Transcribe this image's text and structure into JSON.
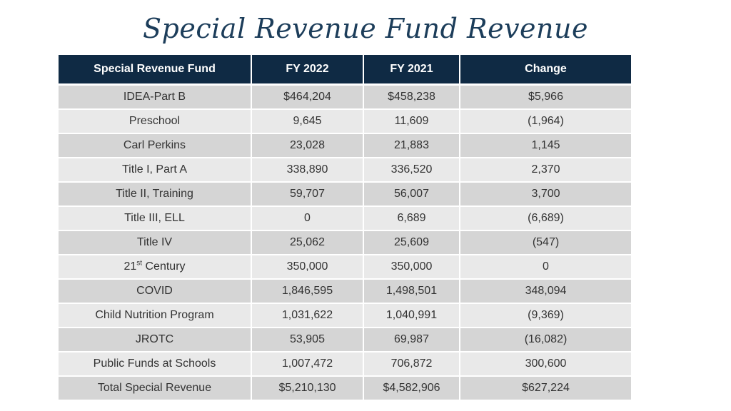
{
  "title": "Special Revenue Fund Revenue",
  "table": {
    "headers": [
      "Special Revenue Fund",
      "FY 2022",
      "FY 2021",
      "Change"
    ],
    "rows": [
      {
        "fund": "IDEA-Part B",
        "fy2022": "$464,204",
        "fy2021": "$458,238",
        "change": "$5,966"
      },
      {
        "fund": "Preschool",
        "fy2022": "9,645",
        "fy2021": "11,609",
        "change": "(1,964)"
      },
      {
        "fund": "Carl Perkins",
        "fy2022": "23,028",
        "fy2021": "21,883",
        "change": "1,145"
      },
      {
        "fund": "Title I, Part A",
        "fy2022": "338,890",
        "fy2021": "336,520",
        "change": "2,370"
      },
      {
        "fund": "Title II, Training",
        "fy2022": "59,707",
        "fy2021": "56,007",
        "change": "3,700"
      },
      {
        "fund": "Title III, ELL",
        "fy2022": "0",
        "fy2021": "6,689",
        "change": "(6,689)"
      },
      {
        "fund": "Title IV",
        "fy2022": "25,062",
        "fy2021": "25,609",
        "change": "(547)"
      },
      {
        "fund_prefix": "21",
        "fund_sup": "st",
        "fund_suffix": " Century",
        "fy2022": "350,000",
        "fy2021": "350,000",
        "change": "0"
      },
      {
        "fund": "COVID",
        "fy2022": "1,846,595",
        "fy2021": "1,498,501",
        "change": "348,094"
      },
      {
        "fund": "Child Nutrition Program",
        "fy2022": "1,031,622",
        "fy2021": "1,040,991",
        "change": "(9,369)"
      },
      {
        "fund": "JROTC",
        "fy2022": "53,905",
        "fy2021": "69,987",
        "change": "(16,082)"
      },
      {
        "fund": "Public Funds at Schools",
        "fy2022": "1,007,472",
        "fy2021": "706,872",
        "change": "300,600"
      },
      {
        "fund": "Total Special Revenue",
        "fy2022": "$5,210,130",
        "fy2021": "$4,582,906",
        "change": "$627,224"
      }
    ]
  }
}
